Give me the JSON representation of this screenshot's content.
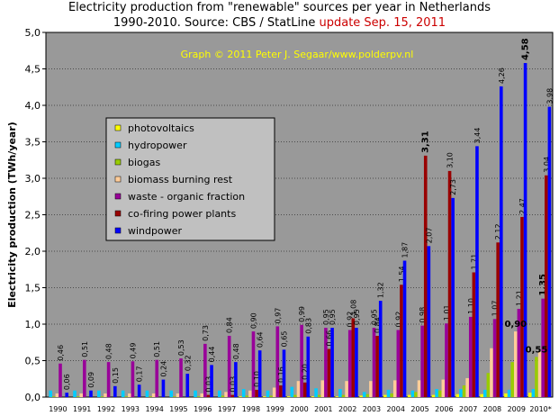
{
  "chart_data": {
    "type": "bar",
    "title_line1": "Electricity production from \"renewable\" sources per year in Netherlands",
    "title_line2": "1990-2010. Source: CBS / StatLine",
    "update_label": "update Sep. 15, 2011",
    "credit": "Graph © 2011 Peter J. Segaar/www.polderpv.nl",
    "ylabel": "Electricity production (TWh/year)",
    "xlabel": "",
    "ylim": [
      0,
      5
    ],
    "ytick_labels": [
      "0,0",
      "0,5",
      "1,0",
      "1,5",
      "2,0",
      "2,5",
      "3,0",
      "3,5",
      "4,0",
      "4,5",
      "5,0"
    ],
    "grid": "horizontal",
    "legend_position": "left",
    "categories": [
      "1990",
      "1991",
      "1992",
      "1993",
      "1994",
      "1995",
      "1996",
      "1997",
      "1998",
      "1999",
      "2000",
      "2001",
      "2002",
      "2003",
      "2004",
      "2005",
      "2006",
      "2007",
      "2008",
      "2009",
      "2010*"
    ],
    "series": [
      {
        "name": "photovoltaics",
        "color": "#ffff00",
        "values": [
          0,
          0,
          0,
          0,
          0,
          0,
          0,
          0,
          0.01,
          0.01,
          0.01,
          0.01,
          0.01,
          0.02,
          0.03,
          0.03,
          0.03,
          0.04,
          0.04,
          0.05,
          0.06
        ]
      },
      {
        "name": "hydropower",
        "color": "#00ccff",
        "values": [
          0.09,
          0.09,
          0.09,
          0.09,
          0.09,
          0.09,
          0.09,
          0.09,
          0.11,
          0.09,
          0.14,
          0.12,
          0.11,
          0.07,
          0.1,
          0.09,
          0.11,
          0.11,
          0.1,
          0.1,
          0.11
        ]
      },
      {
        "name": "biogas",
        "color": "#99cc00",
        "values": [
          0.01,
          0.01,
          0.01,
          0.01,
          0.01,
          0.01,
          0.01,
          0.02,
          0.02,
          0.02,
          0.03,
          0.03,
          0.03,
          0.04,
          0.05,
          0.07,
          0.09,
          0.16,
          0.33,
          0.48,
          0.55
        ]
      },
      {
        "name": "biomass burning rest",
        "color": "#ffcc99",
        "values": [
          0.05,
          0.05,
          0.05,
          0.05,
          0.05,
          0.05,
          0.05,
          0.07,
          0.09,
          0.13,
          0.22,
          0.23,
          0.22,
          0.22,
          0.23,
          0.23,
          0.24,
          0.26,
          0.67,
          0.9,
          0.62
        ]
      },
      {
        "name": "waste - organic fraction",
        "color": "#990099",
        "values": [
          0.46,
          0.51,
          0.48,
          0.49,
          0.51,
          0.53,
          0.73,
          0.84,
          0.9,
          0.97,
          0.99,
          0.95,
          0.92,
          0.95,
          0.92,
          0.98,
          1.01,
          1.1,
          1.07,
          1.21,
          1.35
        ]
      },
      {
        "name": "co-firing power plants",
        "color": "#990000",
        "values": [
          0,
          0,
          0,
          0,
          0,
          0,
          0.03,
          0.03,
          0.1,
          0.16,
          0.2,
          0.66,
          1.08,
          0.84,
          1.54,
          3.31,
          3.1,
          1.71,
          2.12,
          2.47,
          3.04
        ]
      },
      {
        "name": "windpower",
        "color": "#0000ff",
        "values": [
          0.06,
          0.09,
          0.15,
          0.17,
          0.24,
          0.32,
          0.44,
          0.48,
          0.64,
          0.65,
          0.83,
          0.95,
          0.95,
          1.32,
          1.87,
          2.07,
          2.73,
          3.44,
          4.26,
          4.58,
          3.98
        ]
      }
    ],
    "bar_labels": {
      "waste - organic fraction": [
        "0,46",
        "0,51",
        "0,48",
        "0,49",
        "0,51",
        "0,53",
        "0,73",
        "0,84",
        "0,90",
        "0,97",
        "0,99",
        "0,95",
        "0,92",
        "0,95",
        "0,92",
        "0,98",
        "1,01",
        "1,10",
        "1,07",
        "1,21",
        "1,35"
      ],
      "co-firing power plants": [
        "",
        "",
        "",
        "",
        "",
        "",
        "0,03",
        "0,03",
        "0,10",
        "0,16",
        "0,20",
        "0,66",
        "1,08",
        "0,84",
        "1,54",
        "3,31",
        "3,10",
        "1,71",
        "2,12",
        "2,47",
        "3,04"
      ],
      "windpower": [
        "0,06",
        "0,09",
        "0,15",
        "0,17",
        "0,24",
        "0,32",
        "0,44",
        "0,48",
        "0,64",
        "0,65",
        "0,83",
        "0,95",
        "0,95",
        "1,32",
        "1,87",
        "2,07",
        "2,73",
        "3,44",
        "4,26",
        "4,58",
        "3,98"
      ]
    },
    "extra_labels": [
      {
        "series": "biomass burning rest",
        "category": "2009",
        "text": "0,90"
      },
      {
        "series": "biogas",
        "category": "2010*",
        "text": "0,55"
      }
    ],
    "bold_labels": [
      {
        "series": "co-firing power plants",
        "category": "2005"
      },
      {
        "series": "windpower",
        "category": "2009"
      },
      {
        "series": "waste - organic fraction",
        "category": "2010*"
      },
      {
        "series": "biomass burning rest",
        "category": "2009"
      },
      {
        "series": "biogas",
        "category": "2010*"
      }
    ]
  },
  "colors": {
    "plot_background": "#999999",
    "legend_background": "#c0c0c0",
    "credit_color": "#ffff00",
    "update_color": "#cc0000"
  }
}
